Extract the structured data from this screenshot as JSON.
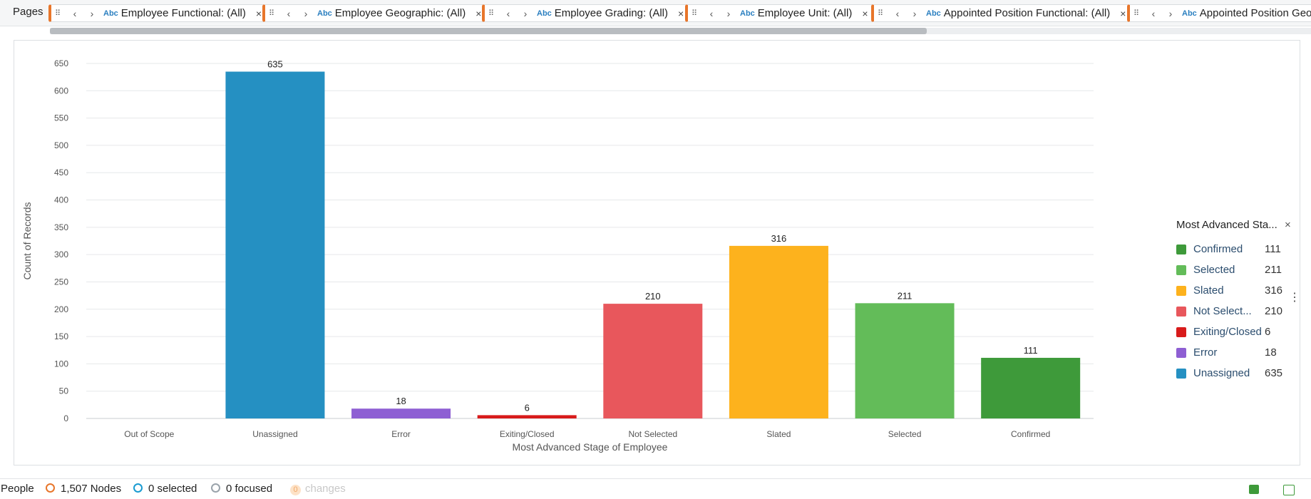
{
  "topbar": {
    "pages_label": "Pages",
    "filters": [
      {
        "label": "Employee Functional: (All)"
      },
      {
        "label": "Employee Geographic: (All)"
      },
      {
        "label": "Employee Grading: (All)"
      },
      {
        "label": "Employee Unit: (All)"
      },
      {
        "label": "Appointed Position Functional: (All)"
      },
      {
        "label": "Appointed Position Geog"
      }
    ],
    "abc_icon": "Abc"
  },
  "chart_data": {
    "type": "bar",
    "categories": [
      "Out of Scope",
      "Unassigned",
      "Error",
      "Exiting/Closed",
      "Not Selected",
      "Slated",
      "Selected",
      "Confirmed"
    ],
    "values": [
      0,
      635,
      18,
      6,
      210,
      316,
      211,
      111
    ],
    "data_labels": [
      "",
      "635",
      "18",
      "6",
      "210",
      "316",
      "211",
      "111"
    ],
    "colors": [
      "#2590c2",
      "#2590c2",
      "#8e5fd3",
      "#d81b1b",
      "#e8575c",
      "#fdb21d",
      "#63bc59",
      "#3e9a3a"
    ],
    "ylabel": "Count of Records",
    "xlabel": "Most Advanced Stage of Employee",
    "ylim": [
      0,
      650
    ],
    "yticks": [
      0,
      50,
      100,
      150,
      200,
      250,
      300,
      350,
      400,
      450,
      500,
      550,
      600,
      650
    ],
    "grid": true,
    "legend_placement": "right"
  },
  "legend": {
    "title": "Most Advanced Sta...",
    "items": [
      {
        "name": "Confirmed",
        "value": "111",
        "color": "#3e9a3a"
      },
      {
        "name": "Selected",
        "value": "211",
        "color": "#63bc59"
      },
      {
        "name": "Slated",
        "value": "316",
        "color": "#fdb21d"
      },
      {
        "name": "Not Select...",
        "value": "210",
        "color": "#e8575c"
      },
      {
        "name": "Exiting/Closed",
        "value": "6",
        "color": "#d81b1b"
      },
      {
        "name": "Error",
        "value": "18",
        "color": "#8e5fd3"
      },
      {
        "name": "Unassigned",
        "value": "635",
        "color": "#2590c2"
      }
    ]
  },
  "status": {
    "graph_name": "People",
    "nodes": "1,507 Nodes",
    "selected": "0 selected",
    "focused": "0 focused",
    "changes": "0",
    "changes_label": "changes"
  }
}
